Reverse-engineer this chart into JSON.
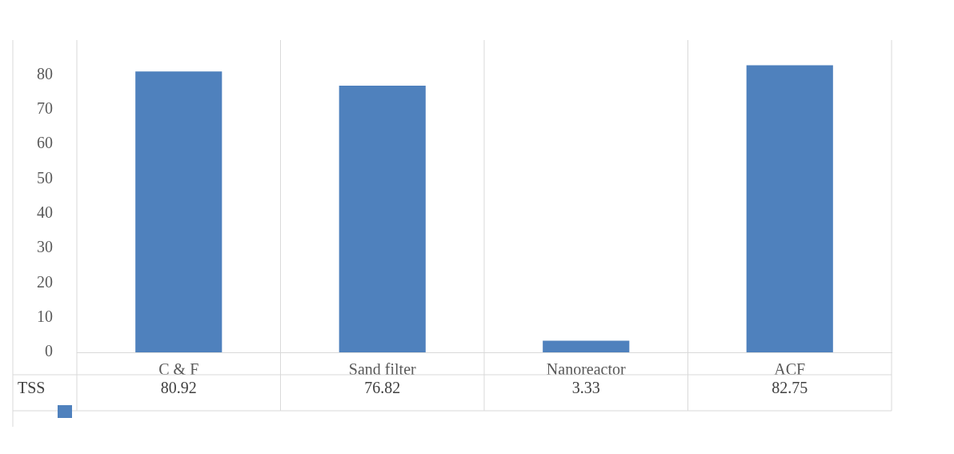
{
  "chart_data": {
    "type": "bar",
    "categories": [
      "C & F",
      "Sand filter",
      "Nanoreactor",
      "ACF"
    ],
    "series": [
      {
        "name": "TSS",
        "color": "#4f81bd",
        "values": [
          80.92,
          76.82,
          3.33,
          82.75
        ]
      }
    ],
    "ylim": [
      0,
      90
    ],
    "yticks": [
      0,
      10,
      20,
      30,
      40,
      50,
      60,
      70,
      80
    ],
    "data_labels": true,
    "grid": false,
    "legend": false
  }
}
